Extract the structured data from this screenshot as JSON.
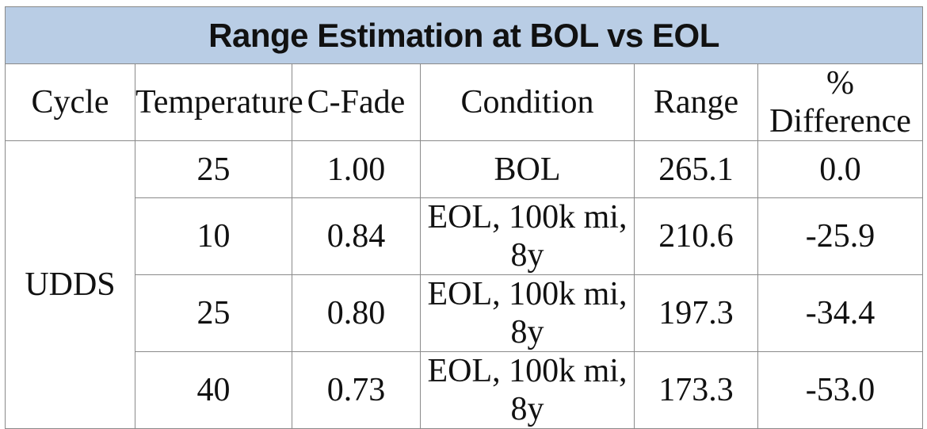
{
  "chart_data": {
    "type": "table",
    "title": "Range Estimation at BOL vs EOL",
    "columns": [
      "Cycle",
      "Temperature",
      "C-Fade",
      "Condition",
      "Range",
      "% Difference"
    ],
    "cycle": "UDDS",
    "rows": [
      {
        "temperature": "25",
        "c_fade": "1.00",
        "condition": "BOL",
        "range": "265.1",
        "pct_difference": "0.0"
      },
      {
        "temperature": "10",
        "c_fade": "0.84",
        "condition": "EOL, 100k mi, 8y",
        "range": "210.6",
        "pct_difference": "-25.9"
      },
      {
        "temperature": "25",
        "c_fade": "0.80",
        "condition": "EOL, 100k mi, 8y",
        "range": "197.3",
        "pct_difference": "-34.4"
      },
      {
        "temperature": "40",
        "c_fade": "0.73",
        "condition": "EOL, 100k mi, 8y",
        "range": "173.3",
        "pct_difference": "-53.0"
      }
    ]
  },
  "colors": {
    "title_background": "#b9cde5",
    "border": "#8a8a8a",
    "text": "#111111"
  }
}
